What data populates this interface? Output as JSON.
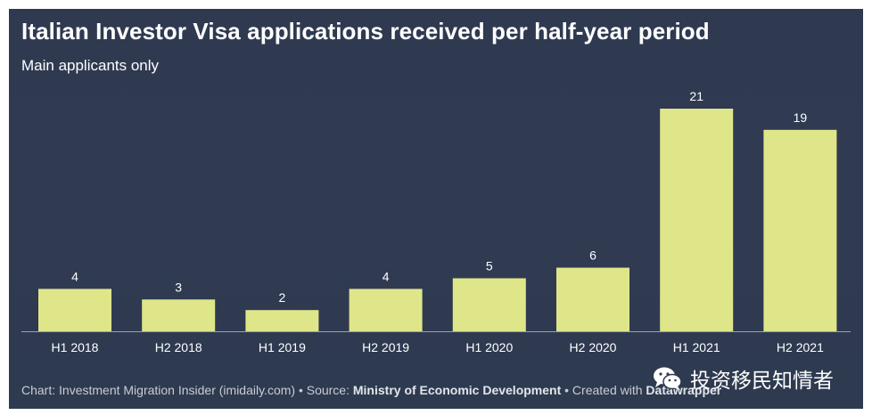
{
  "header": {
    "title": "Italian Investor Visa applications received per half-year period",
    "subtitle": "Main applicants only"
  },
  "chart_data": {
    "type": "bar",
    "title": "Italian Investor Visa applications received per half-year period",
    "subtitle": "Main applicants only",
    "categories": [
      "H1 2018",
      "H2 2018",
      "H1 2019",
      "H2 2019",
      "H1 2020",
      "H2 2020",
      "H1 2021",
      "H2 2021"
    ],
    "values": [
      4,
      3,
      2,
      4,
      5,
      6,
      21,
      19
    ],
    "xlabel": "",
    "ylabel": "",
    "ylim": [
      0,
      21
    ],
    "grid": false,
    "bar_color": "#dfe68a",
    "background_color": "#303b52"
  },
  "footer": {
    "prefix": "Chart: Investment Migration Insider (imidaily.com) • Source: ",
    "source": "Ministry of Economic Development",
    "middle": " • Created with ",
    "tool": "Datawrapper"
  },
  "watermark": {
    "icon": "wechat-icon",
    "text": "投资移民知情者"
  }
}
